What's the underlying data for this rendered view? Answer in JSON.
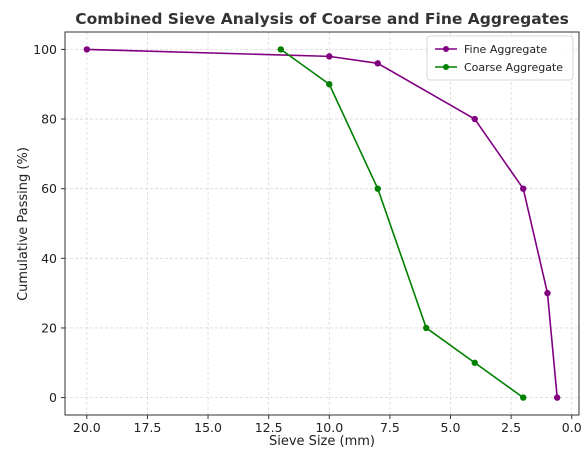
{
  "chart_data": {
    "type": "line",
    "title": "Combined Sieve Analysis of Coarse and Fine Aggregates",
    "xlabel": "Sieve Size (mm)",
    "ylabel": "Cumulative Passing (%)",
    "xlim": [
      20.9,
      -0.3
    ],
    "ylim": [
      -5,
      105
    ],
    "x_inverted": true,
    "xticks": [
      20.0,
      17.5,
      15.0,
      12.5,
      10.0,
      7.5,
      5.0,
      2.5,
      0.0
    ],
    "xtick_labels": [
      "20.0",
      "17.5",
      "15.0",
      "12.5",
      "10.0",
      "7.5",
      "5.0",
      "2.5",
      "0.0"
    ],
    "yticks": [
      0,
      20,
      40,
      60,
      80,
      100
    ],
    "ytick_labels": [
      "0",
      "20",
      "40",
      "60",
      "80",
      "100"
    ],
    "grid": true,
    "legend_position": "top-right",
    "series": [
      {
        "name": "Fine Aggregate",
        "color": "#800080",
        "x": [
          20,
          10,
          8,
          4,
          2,
          1,
          0.6
        ],
        "values": [
          100,
          98,
          96,
          80,
          60,
          30,
          0
        ]
      },
      {
        "name": "Coarse Aggregate",
        "color": "#008000",
        "x": [
          12,
          10,
          8,
          6,
          4,
          2
        ],
        "values": [
          100,
          90,
          60,
          20,
          10,
          0
        ]
      }
    ]
  }
}
